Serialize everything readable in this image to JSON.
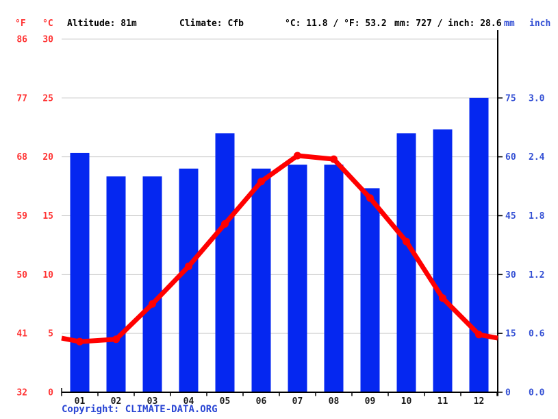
{
  "header": {
    "f_axis_label": "°F",
    "c_axis_label": "°C",
    "altitude": "Altitude: 81m",
    "climate": "Climate: Cfb",
    "temp_summary": "°C: 11.8 / °F: 53.2",
    "precip_summary": "mm: 727 / inch: 28.6",
    "mm_axis_label": "mm",
    "inch_axis_label": "inch"
  },
  "footer": {
    "copyright_label": "Copyright:",
    "copyright_link": "CLIMATE-DATA.ORG"
  },
  "colors": {
    "bar": "#0527f0",
    "line": "#ff0000",
    "red_text": "#ff3333",
    "blue_text": "#3450d4",
    "grid": "#cccccc",
    "axis": "#000000",
    "month_text": "#1a1a1a"
  },
  "chart_data": {
    "type": "bar+line climograph",
    "months": [
      "01",
      "02",
      "03",
      "04",
      "05",
      "06",
      "07",
      "08",
      "09",
      "10",
      "11",
      "12"
    ],
    "series": [
      {
        "name": "precipitation",
        "type": "bar",
        "unit": "mm",
        "values": [
          61,
          55,
          55,
          57,
          66,
          57,
          58,
          58,
          52,
          66,
          67,
          75
        ]
      },
      {
        "name": "temperature",
        "type": "line",
        "unit": "°C",
        "values": [
          4.3,
          4.5,
          7.5,
          10.7,
          14.3,
          17.9,
          20.1,
          19.8,
          16.5,
          12.8,
          8.0,
          4.9
        ]
      }
    ],
    "left_axis": {
      "fahrenheit_ticks": [
        86,
        77,
        68,
        59,
        50,
        41,
        32
      ],
      "celsius_ticks": [
        30,
        25,
        20,
        15,
        10,
        5,
        0
      ],
      "range_c": [
        0,
        30
      ]
    },
    "right_axis": {
      "mm_ticks": [
        75,
        60,
        45,
        30,
        15,
        0
      ],
      "inch_ticks": [
        "3.0",
        "2.4",
        "1.8",
        "1.2",
        "0.6",
        "0.0"
      ],
      "range_mm": [
        0,
        90
      ]
    },
    "grid": true,
    "legend": "none",
    "annotations": {
      "mean_temp_c": 11.8,
      "mean_temp_f": 53.2,
      "total_precip_mm": 727,
      "total_precip_inch": 28.6
    }
  }
}
